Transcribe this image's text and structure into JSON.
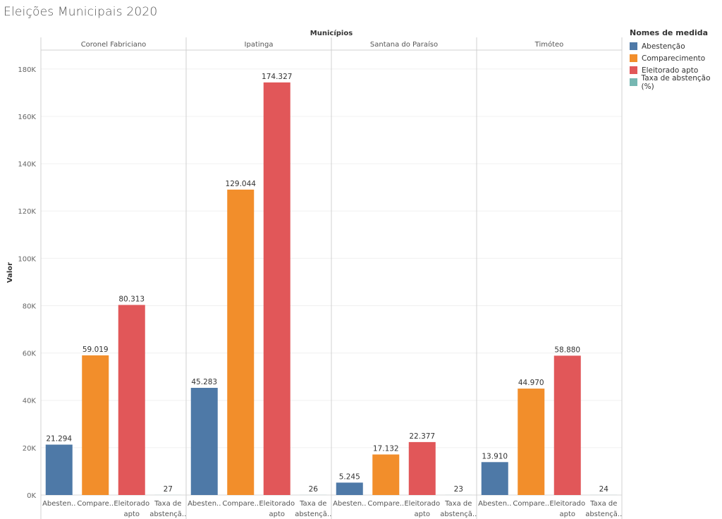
{
  "title": "Eleições Municipais 2020",
  "chart_data": {
    "type": "bar",
    "column_header": "Municípios",
    "ylabel": "Valor",
    "ylim": [
      0,
      188000
    ],
    "yticks": [
      0,
      20000,
      40000,
      60000,
      80000,
      100000,
      120000,
      140000,
      160000,
      180000
    ],
    "ytick_labels": [
      "0K",
      "20K",
      "40K",
      "60K",
      "80K",
      "100K",
      "120K",
      "140K",
      "160K",
      "180K"
    ],
    "grid": true,
    "legend_title": "Nomes de medida",
    "legend_position": "right",
    "series_names": [
      "Abestenção",
      "Comparecimento",
      "Eleitorado apto",
      "Taxa de abstenção (%)"
    ],
    "series_colors": [
      "#4e79a7",
      "#f28e2b",
      "#e15759",
      "#76b7b2"
    ],
    "category_axis_labels": [
      [
        "Abesten.."
      ],
      [
        "Compare.."
      ],
      [
        "Eleitorado",
        "apto"
      ],
      [
        "Taxa de",
        "abstençã.."
      ]
    ],
    "panels": [
      {
        "name": "Coronel Fabriciano",
        "values": [
          21294,
          59019,
          80313,
          27
        ],
        "labels": [
          "21.294",
          "59.019",
          "80.313",
          "27"
        ]
      },
      {
        "name": "Ipatinga",
        "values": [
          45283,
          129044,
          174327,
          26
        ],
        "labels": [
          "45.283",
          "129.044",
          "174.327",
          "26"
        ]
      },
      {
        "name": "Santana do Paraíso",
        "values": [
          5245,
          17132,
          22377,
          23
        ],
        "labels": [
          "5.245",
          "17.132",
          "22.377",
          "23"
        ]
      },
      {
        "name": "Timóteo",
        "values": [
          13910,
          44970,
          58880,
          24
        ],
        "labels": [
          "13.910",
          "44.970",
          "58.880",
          "24"
        ]
      }
    ]
  }
}
